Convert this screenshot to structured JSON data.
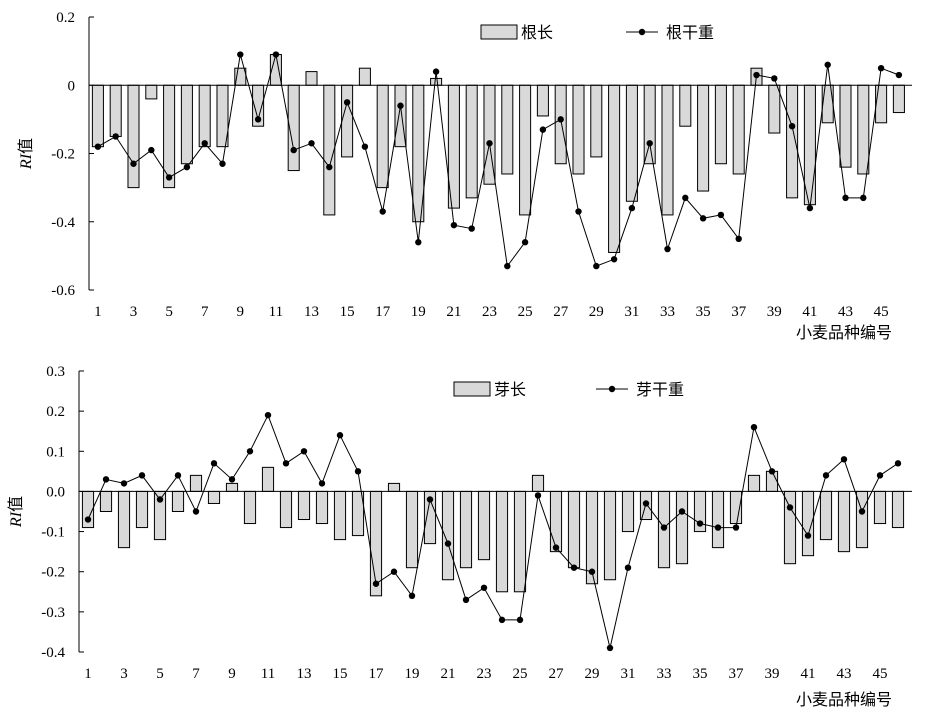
{
  "chart_data": [
    {
      "type": "bar",
      "ylabel_italic": "RI",
      "ylabel_suffix": "值",
      "xlabel": "小麦品种编号",
      "ylim": [
        -0.6,
        0.2
      ],
      "yticks": [
        0.2,
        0,
        -0.2,
        -0.4,
        -0.6
      ],
      "ytick_labels": [
        "0.2",
        "0",
        "-0.2",
        "-0.4",
        "-0.6"
      ],
      "xtick_labels": [
        "1",
        "3",
        "5",
        "7",
        "9",
        "11",
        "13",
        "15",
        "17",
        "19",
        "21",
        "23",
        "25",
        "27",
        "29",
        "31",
        "33",
        "35",
        "37",
        "39",
        "41",
        "43",
        "45"
      ],
      "legend_position": "top-right",
      "x": [
        1,
        2,
        3,
        4,
        5,
        6,
        7,
        8,
        9,
        10,
        11,
        12,
        13,
        14,
        15,
        16,
        17,
        18,
        19,
        20,
        21,
        22,
        23,
        24,
        25,
        26,
        27,
        28,
        29,
        30,
        31,
        32,
        33,
        34,
        35,
        36,
        37,
        38,
        39,
        40,
        41,
        42,
        43,
        44,
        45,
        46
      ],
      "series": [
        {
          "name": "根长",
          "kind": "bar",
          "values": [
            -0.18,
            -0.15,
            -0.3,
            -0.04,
            -0.3,
            -0.23,
            -0.18,
            -0.18,
            0.05,
            -0.12,
            0.09,
            -0.25,
            0.04,
            -0.38,
            -0.21,
            0.05,
            -0.3,
            -0.18,
            -0.4,
            0.02,
            -0.36,
            -0.33,
            -0.29,
            -0.26,
            -0.38,
            -0.09,
            -0.23,
            -0.26,
            -0.21,
            -0.49,
            -0.34,
            -0.23,
            -0.38,
            -0.12,
            -0.31,
            -0.23,
            -0.26,
            0.05,
            -0.14,
            -0.33,
            -0.35,
            -0.11,
            -0.24,
            -0.26,
            -0.11,
            -0.08
          ]
        },
        {
          "name": "根干重",
          "kind": "line",
          "values": [
            -0.18,
            -0.15,
            -0.23,
            -0.19,
            -0.27,
            -0.24,
            -0.17,
            -0.23,
            0.09,
            -0.1,
            0.09,
            -0.19,
            -0.17,
            -0.24,
            -0.05,
            -0.18,
            -0.37,
            -0.06,
            -0.46,
            0.04,
            -0.41,
            -0.42,
            -0.17,
            -0.53,
            -0.46,
            -0.13,
            -0.1,
            -0.37,
            -0.53,
            -0.51,
            -0.36,
            -0.17,
            -0.48,
            -0.33,
            -0.39,
            -0.38,
            -0.45,
            0.03,
            0.02,
            -0.12,
            -0.36,
            0.06,
            -0.33,
            -0.33,
            0.05,
            0.03
          ]
        }
      ]
    },
    {
      "type": "bar",
      "ylabel_italic": "RI",
      "ylabel_suffix": "值",
      "xlabel": "小麦品种编号",
      "ylim": [
        -0.4,
        0.3
      ],
      "yticks": [
        0.3,
        0.2,
        0.1,
        0,
        -0.1,
        -0.2,
        -0.3,
        -0.4
      ],
      "ytick_labels": [
        "0.3",
        "0.2",
        "0.1",
        "0.0",
        "-0.1",
        "-0.2",
        "-0.3",
        "-0.4"
      ],
      "xtick_labels": [
        "1",
        "3",
        "5",
        "7",
        "9",
        "11",
        "13",
        "15",
        "17",
        "19",
        "21",
        "23",
        "25",
        "27",
        "29",
        "31",
        "33",
        "35",
        "37",
        "39",
        "41",
        "43",
        "45"
      ],
      "legend_position": "top-right",
      "x": [
        1,
        2,
        3,
        4,
        5,
        6,
        7,
        8,
        9,
        10,
        11,
        12,
        13,
        14,
        15,
        16,
        17,
        18,
        19,
        20,
        21,
        22,
        23,
        24,
        25,
        26,
        27,
        28,
        29,
        30,
        31,
        32,
        33,
        34,
        35,
        36,
        37,
        38,
        39,
        40,
        41,
        42,
        43,
        44,
        45,
        46
      ],
      "series": [
        {
          "name": "芽长",
          "kind": "bar",
          "values": [
            -0.09,
            -0.05,
            -0.14,
            -0.09,
            -0.12,
            -0.05,
            0.04,
            -0.03,
            0.02,
            -0.08,
            0.06,
            -0.09,
            -0.07,
            -0.08,
            -0.12,
            -0.11,
            -0.26,
            0.02,
            -0.19,
            -0.13,
            -0.22,
            -0.19,
            -0.17,
            -0.25,
            -0.25,
            0.04,
            -0.15,
            -0.19,
            -0.23,
            -0.22,
            -0.1,
            -0.07,
            -0.19,
            -0.18,
            -0.1,
            -0.14,
            -0.08,
            0.04,
            0.05,
            -0.18,
            -0.16,
            -0.12,
            -0.15,
            -0.14,
            -0.08,
            -0.09
          ]
        },
        {
          "name": "芽干重",
          "kind": "line",
          "values": [
            -0.07,
            0.03,
            0.02,
            0.04,
            -0.02,
            0.04,
            -0.05,
            0.07,
            0.03,
            0.1,
            0.19,
            0.07,
            0.1,
            0.02,
            0.14,
            0.05,
            -0.23,
            -0.2,
            -0.26,
            -0.02,
            -0.13,
            -0.27,
            -0.24,
            -0.32,
            -0.32,
            -0.01,
            -0.14,
            -0.19,
            -0.2,
            -0.39,
            -0.19,
            -0.03,
            -0.09,
            -0.05,
            -0.08,
            -0.09,
            -0.09,
            0.16,
            0.05,
            -0.04,
            -0.11,
            0.04,
            0.08,
            -0.05,
            0.04,
            0.07
          ]
        }
      ]
    }
  ]
}
